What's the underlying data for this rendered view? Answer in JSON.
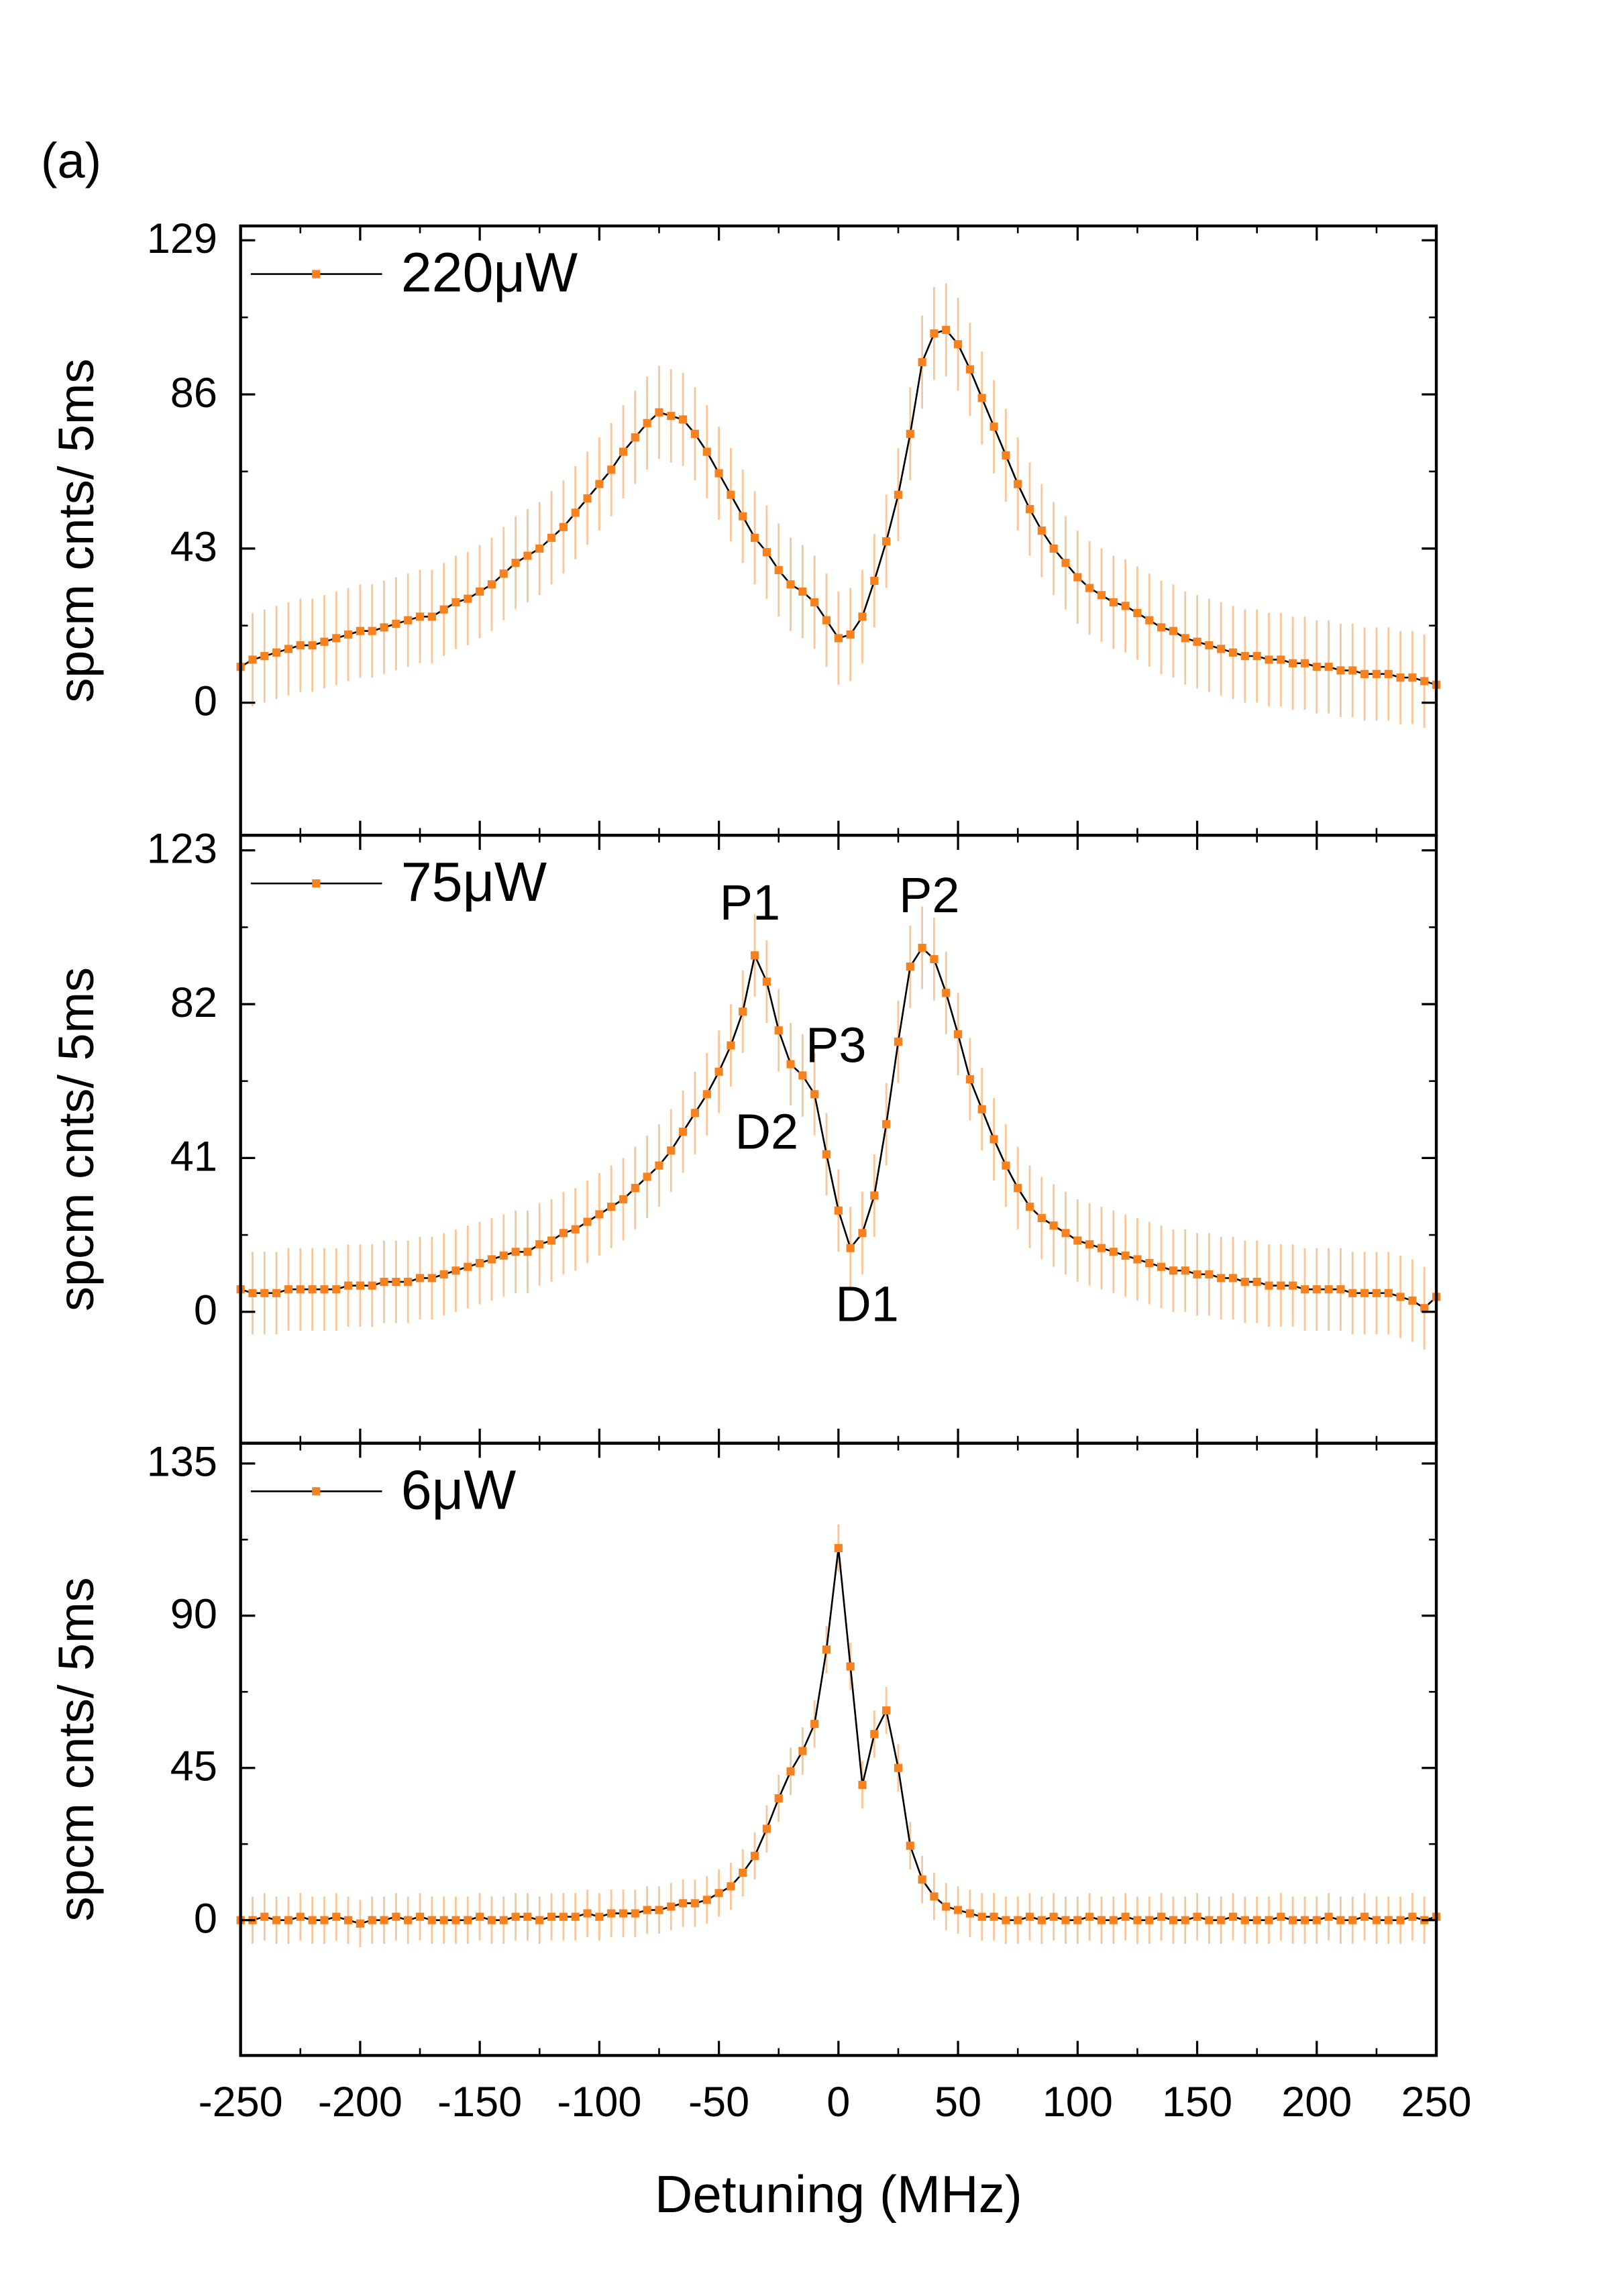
{
  "chart_data": [
    {
      "type": "line",
      "panel_label": "(a)",
      "ylabel": "spcm cnts/ 5ms",
      "xlim": [
        -250,
        250
      ],
      "xticks": [
        -250,
        -200,
        -150,
        -100,
        -50,
        0,
        50,
        100,
        150,
        200,
        250
      ],
      "ylim": [
        -37,
        133
      ],
      "yticks": [
        0,
        43,
        86,
        129
      ],
      "x": [
        -250,
        -245,
        -240,
        -235,
        -230,
        -225,
        -220,
        -215,
        -210,
        -205,
        -200,
        -195,
        -190,
        -185,
        -180,
        -175,
        -170,
        -165,
        -160,
        -155,
        -150,
        -145,
        -140,
        -135,
        -130,
        -125,
        -120,
        -115,
        -110,
        -105,
        -100,
        -95,
        -90,
        -85,
        -80,
        -75,
        -70,
        -65,
        -60,
        -55,
        -50,
        -45,
        -40,
        -35,
        -30,
        -25,
        -20,
        -15,
        -10,
        -5,
        0,
        5,
        10,
        15,
        20,
        25,
        30,
        35,
        40,
        45,
        50,
        55,
        60,
        65,
        70,
        75,
        80,
        85,
        90,
        95,
        100,
        105,
        110,
        115,
        120,
        125,
        130,
        135,
        140,
        145,
        150,
        155,
        160,
        165,
        170,
        175,
        180,
        185,
        190,
        195,
        200,
        205,
        210,
        215,
        220,
        225,
        230,
        235,
        240,
        245,
        250
      ],
      "series": [
        {
          "name": "220μW",
          "color": "#f5821f",
          "error_color": "#f9c69a",
          "line_color": "#000000",
          "error": 13,
          "values": [
            10,
            12,
            13,
            14,
            15,
            16,
            16,
            17,
            18,
            19,
            20,
            20,
            21,
            22,
            23,
            24,
            24,
            26,
            28,
            29,
            31,
            33,
            36,
            39,
            41,
            43,
            46,
            49,
            53,
            57,
            61,
            65,
            70,
            74,
            78,
            81,
            80,
            79,
            75,
            70,
            64,
            58,
            52,
            46,
            42,
            37,
            33,
            31,
            28,
            23,
            18,
            19,
            24,
            34,
            45,
            58,
            75,
            95,
            103,
            104,
            100,
            93,
            85,
            77,
            69,
            61,
            54,
            48,
            43,
            39,
            35,
            32,
            30,
            28,
            27,
            25,
            23,
            21,
            20,
            18,
            17,
            16,
            15,
            14,
            13,
            13,
            12,
            12,
            11,
            11,
            10,
            10,
            9,
            9,
            8,
            8,
            8,
            7,
            7,
            6,
            5
          ]
        }
      ]
    },
    {
      "type": "line",
      "ylabel": "spcm cnts/ 5ms",
      "xlim": [
        -250,
        250
      ],
      "xticks": [
        -250,
        -200,
        -150,
        -100,
        -50,
        0,
        50,
        100,
        150,
        200,
        250
      ],
      "ylim": [
        -35,
        127
      ],
      "yticks": [
        0,
        41,
        82,
        123
      ],
      "x": [
        -250,
        -245,
        -240,
        -235,
        -230,
        -225,
        -220,
        -215,
        -210,
        -205,
        -200,
        -195,
        -190,
        -185,
        -180,
        -175,
        -170,
        -165,
        -160,
        -155,
        -150,
        -145,
        -140,
        -135,
        -130,
        -125,
        -120,
        -115,
        -110,
        -105,
        -100,
        -95,
        -90,
        -85,
        -80,
        -75,
        -70,
        -65,
        -60,
        -55,
        -50,
        -45,
        -40,
        -35,
        -30,
        -25,
        -20,
        -15,
        -10,
        -5,
        0,
        5,
        10,
        15,
        20,
        25,
        30,
        35,
        40,
        45,
        50,
        55,
        60,
        65,
        70,
        75,
        80,
        85,
        90,
        95,
        100,
        105,
        110,
        115,
        120,
        125,
        130,
        135,
        140,
        145,
        150,
        155,
        160,
        165,
        170,
        175,
        180,
        185,
        190,
        195,
        200,
        205,
        210,
        215,
        220,
        225,
        230,
        235,
        240,
        245,
        250
      ],
      "series": [
        {
          "name": "75μW",
          "color": "#f5821f",
          "error_color": "#f9c69a",
          "line_color": "#000000",
          "error": 11,
          "values": [
            6,
            5,
            5,
            5,
            6,
            6,
            6,
            6,
            6,
            7,
            7,
            7,
            8,
            8,
            8,
            9,
            9,
            10,
            11,
            12,
            13,
            14,
            15,
            16,
            16,
            18,
            19,
            21,
            22,
            24,
            26,
            28,
            30,
            33,
            36,
            39,
            43,
            48,
            53,
            58,
            64,
            71,
            80,
            95,
            88,
            75,
            66,
            63,
            58,
            42,
            27,
            17,
            21,
            31,
            50,
            72,
            92,
            97,
            94,
            85,
            74,
            62,
            54,
            46,
            39,
            33,
            28,
            25,
            23,
            21,
            19,
            18,
            17,
            16,
            15,
            14,
            13,
            12,
            11,
            11,
            10,
            10,
            9,
            9,
            8,
            8,
            7,
            7,
            7,
            6,
            6,
            6,
            6,
            5,
            5,
            5,
            5,
            4,
            3,
            1,
            4
          ]
        }
      ],
      "annotations": [
        {
          "text": "P1",
          "x": -37,
          "y": 108
        },
        {
          "text": "P2",
          "x": 38,
          "y": 110
        },
        {
          "text": "P3",
          "x": -1,
          "y": 70
        },
        {
          "text": "D2",
          "x": -30,
          "y": 47
        },
        {
          "text": "D1",
          "x": 12,
          "y": 1
        }
      ]
    },
    {
      "type": "line",
      "ylabel": "spcm cnts/ 5ms",
      "xlabel": "Detuning (MHz)",
      "xlim": [
        -250,
        250
      ],
      "xticks": [
        -250,
        -200,
        -150,
        -100,
        -50,
        0,
        50,
        100,
        150,
        200,
        250
      ],
      "ylim": [
        -40,
        141
      ],
      "yticks": [
        0,
        45,
        90,
        135
      ],
      "x": [
        -250,
        -245,
        -240,
        -235,
        -230,
        -225,
        -220,
        -215,
        -210,
        -205,
        -200,
        -195,
        -190,
        -185,
        -180,
        -175,
        -170,
        -165,
        -160,
        -155,
        -150,
        -145,
        -140,
        -135,
        -130,
        -125,
        -120,
        -115,
        -110,
        -105,
        -100,
        -95,
        -90,
        -85,
        -80,
        -75,
        -70,
        -65,
        -60,
        -55,
        -50,
        -45,
        -40,
        -35,
        -30,
        -25,
        -20,
        -15,
        -10,
        -5,
        0,
        5,
        10,
        15,
        20,
        25,
        30,
        35,
        40,
        45,
        50,
        55,
        60,
        65,
        70,
        75,
        80,
        85,
        90,
        95,
        100,
        105,
        110,
        115,
        120,
        125,
        130,
        135,
        140,
        145,
        150,
        155,
        160,
        165,
        170,
        175,
        180,
        185,
        190,
        195,
        200,
        205,
        210,
        215,
        220,
        225,
        230,
        235,
        240,
        245,
        250
      ],
      "series": [
        {
          "name": "6μW",
          "color": "#f5821f",
          "error_color": "#f9c69a",
          "line_color": "#000000",
          "error": 7,
          "values": [
            0,
            0,
            1,
            0,
            0,
            1,
            0,
            0,
            1,
            0,
            -1,
            0,
            0,
            1,
            0,
            1,
            0,
            0,
            0,
            0,
            1,
            0,
            0,
            1,
            1,
            0,
            1,
            1,
            1,
            2,
            1,
            2,
            2,
            2,
            3,
            3,
            4,
            5,
            5,
            6,
            8,
            10,
            14,
            19,
            27,
            36,
            44,
            50,
            58,
            80,
            110,
            75,
            40,
            55,
            62,
            45,
            22,
            12,
            7,
            4,
            3,
            2,
            1,
            1,
            0,
            0,
            1,
            0,
            1,
            0,
            0,
            1,
            0,
            0,
            1,
            0,
            0,
            1,
            0,
            0,
            1,
            0,
            0,
            1,
            0,
            0,
            0,
            1,
            0,
            0,
            0,
            1,
            0,
            0,
            1,
            0,
            0,
            0,
            1,
            0,
            1
          ]
        }
      ]
    }
  ]
}
